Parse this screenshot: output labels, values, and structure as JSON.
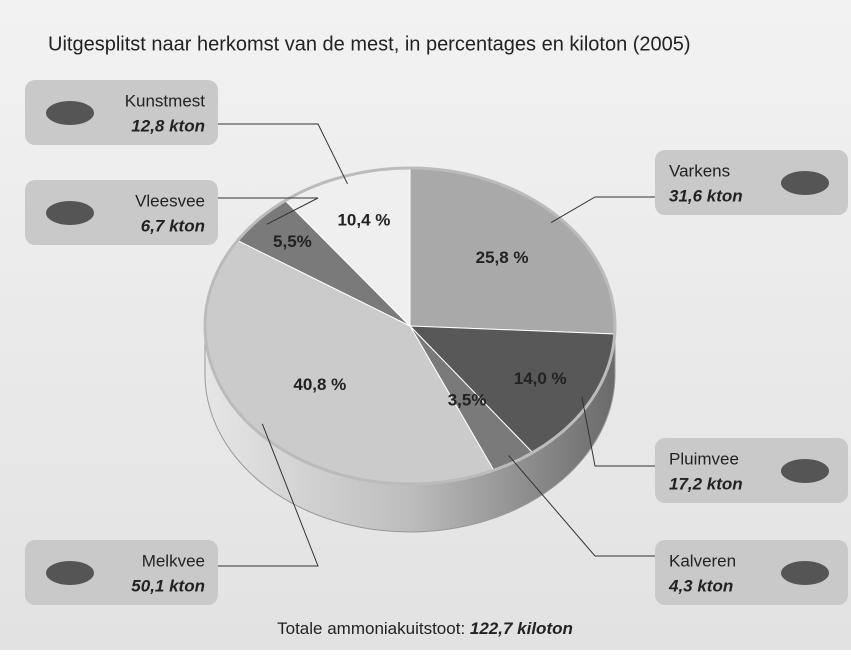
{
  "chart_data": {
    "type": "pie",
    "title": "Uitgesplitst naar herkomst van de mest, in percentages en kiloton (2005)",
    "categories": [
      "Varkens",
      "Pluimvee",
      "Kalveren",
      "Melkvee",
      "Vleesvee",
      "Kunstmest"
    ],
    "values": [
      25.8,
      14.0,
      3.5,
      40.8,
      5.5,
      10.4
    ],
    "value_labels": [
      "25,8 %",
      "14,0 %",
      "3,5%",
      "40,8 %",
      "5,5%",
      "10,4 %"
    ],
    "kton_labels": [
      "31,6 kton",
      "17,2 kton",
      "4,3 kton",
      "50,1 kton",
      "6,7 kton",
      "12,8 kton"
    ],
    "colors": [
      "#a9a9a9",
      "#585858",
      "#7a7a7a",
      "#cbcbcb",
      "#7a7a7a",
      "#efefef"
    ],
    "footer": {
      "label": "Totale ammoniakuitstoot: ",
      "value": "122,7 kiloton"
    }
  }
}
